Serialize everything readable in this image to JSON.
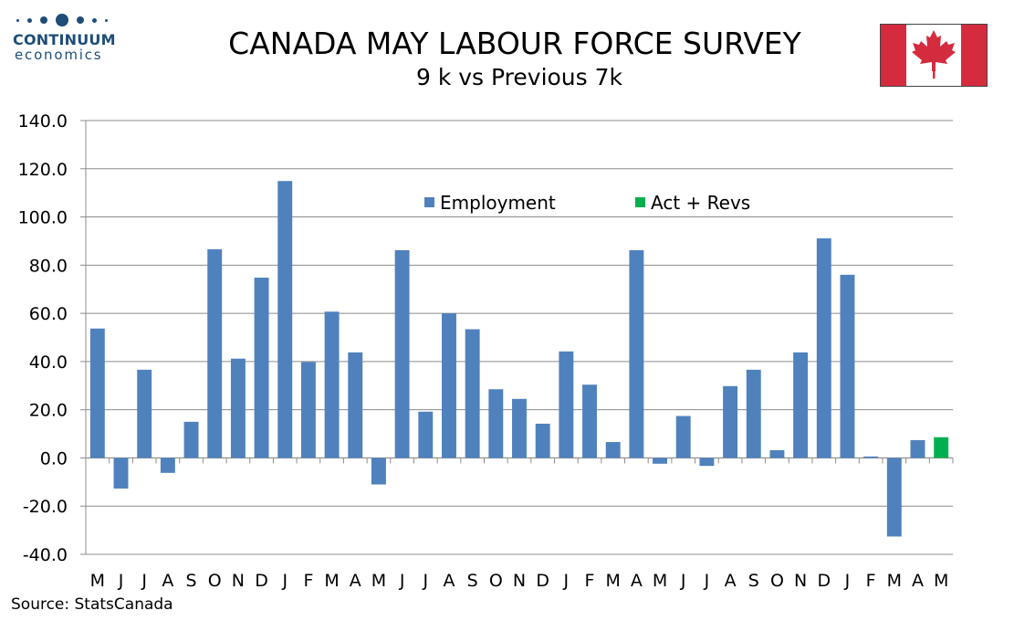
{
  "logo": {
    "line1": "CONTINUUM",
    "line2": "economics",
    "color": "#1e4d78"
  },
  "title": "CANADA MAY LABOUR FORCE SURVEY",
  "subtitle": "9 k vs Previous 7k",
  "flag": {
    "red": "#d52b3f",
    "white": "#ffffff",
    "icon": "maple-leaf-icon"
  },
  "source": "Source: StatsCanada",
  "chart_data": {
    "type": "bar",
    "categories": [
      "M",
      "J",
      "J",
      "A",
      "S",
      "O",
      "N",
      "D",
      "J",
      "F",
      "M",
      "A",
      "M",
      "J",
      "J",
      "A",
      "S",
      "O",
      "N",
      "D",
      "J",
      "F",
      "M",
      "A",
      "M",
      "J",
      "J",
      "A",
      "S",
      "O",
      "N",
      "D",
      "J",
      "F",
      "M",
      "A",
      "M"
    ],
    "series": [
      {
        "name": "Employment",
        "color": "#4f81bd",
        "values": [
          53.7,
          -12.7,
          36.6,
          -6.2,
          15.0,
          86.6,
          41.2,
          74.8,
          114.9,
          39.8,
          60.7,
          43.8,
          -11.0,
          86.2,
          19.2,
          60.0,
          53.4,
          28.5,
          24.5,
          14.2,
          44.2,
          30.4,
          6.6,
          86.2,
          -2.4,
          17.4,
          -3.3,
          29.8,
          36.6,
          3.2,
          43.8,
          91.1,
          76.0,
          0.6,
          -32.6,
          7.4,
          null
        ]
      },
      {
        "name": "Act + Revs",
        "color": "#00b050",
        "values": [
          null,
          null,
          null,
          null,
          null,
          null,
          null,
          null,
          null,
          null,
          null,
          null,
          null,
          null,
          null,
          null,
          null,
          null,
          null,
          null,
          null,
          null,
          null,
          null,
          null,
          null,
          null,
          null,
          null,
          null,
          null,
          null,
          null,
          null,
          null,
          null,
          8.6
        ]
      }
    ],
    "ylim": [
      -40,
      140
    ],
    "yticks": [
      "140.0",
      "120.0",
      "100.0",
      "80.0",
      "60.0",
      "40.0",
      "20.0",
      "0.0",
      "-20.0",
      "-40.0"
    ],
    "grid": true,
    "legend": "top-center",
    "xlabel": "",
    "ylabel": ""
  }
}
